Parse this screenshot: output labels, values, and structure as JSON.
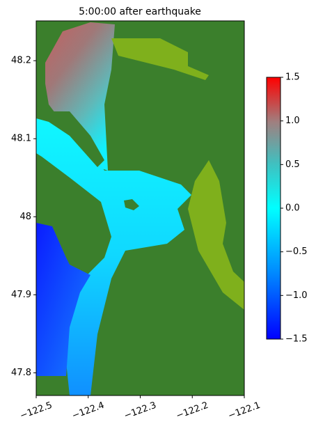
{
  "chart_data": {
    "type": "heatmap",
    "title": "5:00:00 after earthquake",
    "xlim": [
      -122.5,
      -122.1
    ],
    "xticks": [
      {
        "value": -122.5,
        "label": "−122.5"
      },
      {
        "value": -122.4,
        "label": "−122.4"
      },
      {
        "value": -122.3,
        "label": "−122.3"
      },
      {
        "value": -122.2,
        "label": "−122.2"
      },
      {
        "value": -122.1,
        "label": "−122.1"
      }
    ],
    "ylim": [
      47.771,
      48.251
    ],
    "yticks": [
      47.8,
      47.9,
      48.0,
      48.1,
      48.2
    ],
    "clim": [
      -1.5,
      1.5
    ],
    "cticks": [
      {
        "value": -1.5,
        "label": "−1.5"
      },
      {
        "value": -1.0,
        "label": "−1.0"
      },
      {
        "value": -0.5,
        "label": "−0.5"
      },
      {
        "value": 0,
        "label": "0.0"
      },
      {
        "value": 0.5,
        "label": "0.5"
      },
      {
        "value": 1.0,
        "label": "1.0"
      },
      {
        "value": 1.5,
        "label": "1.5"
      }
    ]
  }
}
